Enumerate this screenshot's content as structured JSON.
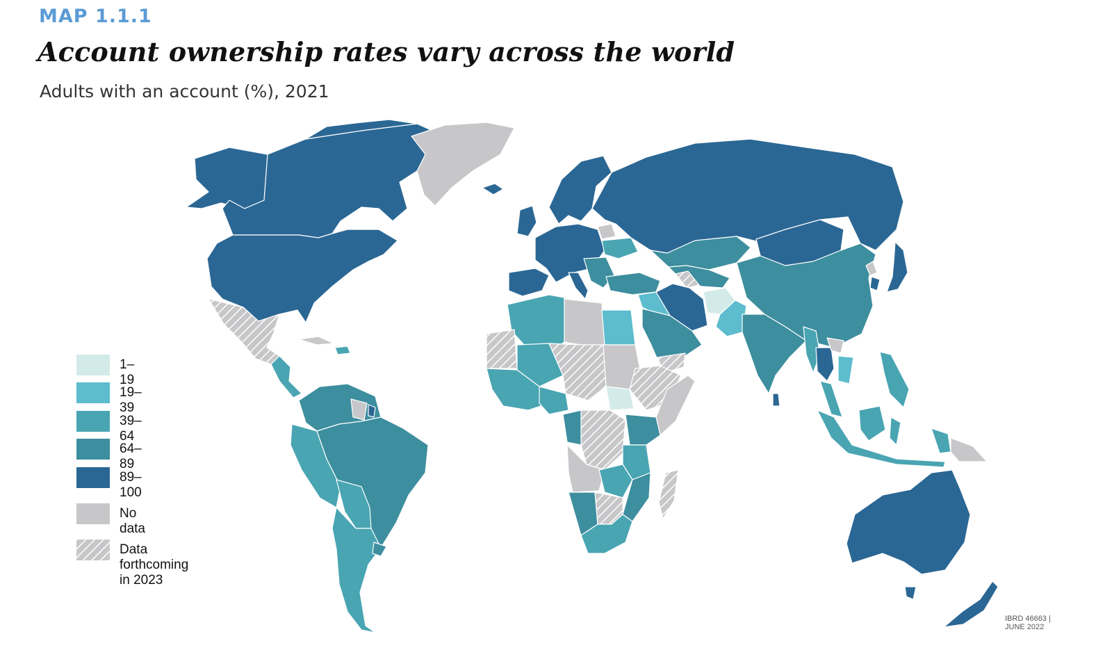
{
  "header": {
    "map_label": "MAP 1.1.1",
    "title": "Account ownership rates vary across the world",
    "subtitle": "Adults with an account (%), 2021"
  },
  "colors": {
    "band_1_19": "#d2ebe9",
    "band_19_39": "#5dbccd",
    "band_39_64": "#49a5b2",
    "band_64_89": "#3d8e9e",
    "band_89_100": "#2b6794",
    "no_data": "#c7c7c9",
    "forthcoming_stripe": "#ffffff",
    "label_accent": "#5b9bd5"
  },
  "legend": {
    "items": [
      {
        "label": "1–19",
        "color": "#d2ebe9",
        "pattern": "solid"
      },
      {
        "label": "19–39",
        "color": "#5dbccd",
        "pattern": "solid"
      },
      {
        "label": "39–64",
        "color": "#49a5b2",
        "pattern": "solid"
      },
      {
        "label": "64–89",
        "color": "#3d8e9e",
        "pattern": "solid"
      },
      {
        "label": "89–100",
        "color": "#2b6794",
        "pattern": "solid"
      },
      {
        "label": "No data",
        "color": "#c7c7c9",
        "pattern": "solid"
      },
      {
        "label": "Data\nforthcoming\nin 2023",
        "color": "#c7c7c9",
        "pattern": "hatched"
      }
    ]
  },
  "credit": {
    "line1": "IBRD 46663 |",
    "line2": "JUNE 2022"
  }
}
